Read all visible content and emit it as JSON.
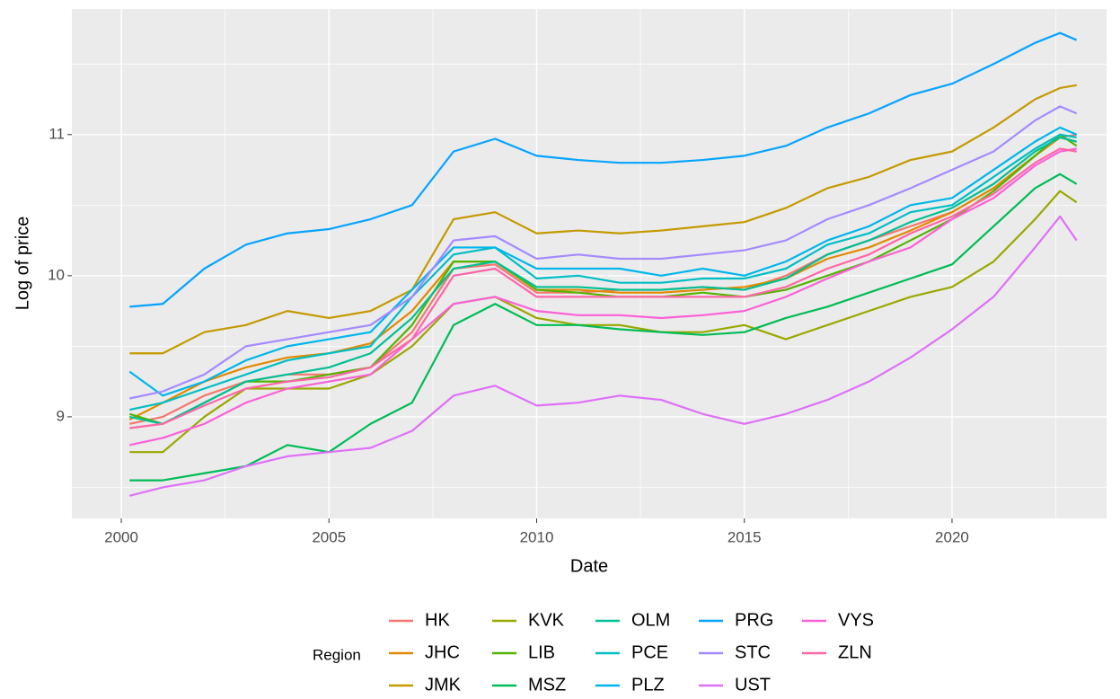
{
  "chart_data": {
    "type": "line",
    "x_label": "Date",
    "y_label": "Log of price",
    "legend_title": "Region",
    "xlim": [
      1998.81,
      2023.72
    ],
    "ylim": [
      8.28,
      11.89
    ],
    "xticks": [
      2000,
      2005,
      2010,
      2015,
      2020
    ],
    "yticks": [
      9,
      10,
      11
    ],
    "grid": true,
    "legend_position": "bottom",
    "x": [
      2000.2,
      2001,
      2002,
      2003,
      2004,
      2005,
      2006,
      2007,
      2008,
      2009,
      2010,
      2011,
      2012,
      2013,
      2014,
      2015,
      2016,
      2017,
      2018,
      2019,
      2020,
      2021,
      2022,
      2022.6,
      2023
    ],
    "series": [
      {
        "name": "HK",
        "color": "#F8766D",
        "values": [
          8.95,
          9.0,
          9.15,
          9.25,
          9.3,
          9.3,
          9.35,
          9.6,
          10.05,
          10.08,
          9.88,
          9.88,
          9.9,
          9.9,
          9.92,
          9.9,
          10.0,
          10.15,
          10.25,
          10.35,
          10.45,
          10.62,
          10.85,
          10.98,
          11.0
        ]
      },
      {
        "name": "JHC",
        "color": "#E38900",
        "values": [
          8.98,
          9.1,
          9.25,
          9.35,
          9.42,
          9.45,
          9.52,
          9.75,
          10.1,
          10.1,
          9.9,
          9.9,
          9.88,
          9.88,
          9.9,
          9.92,
          9.98,
          10.12,
          10.2,
          10.32,
          10.45,
          10.62,
          10.85,
          10.98,
          10.95
        ]
      },
      {
        "name": "JMK",
        "color": "#C49A00",
        "values": [
          9.45,
          9.45,
          9.6,
          9.65,
          9.75,
          9.7,
          9.75,
          9.9,
          10.4,
          10.45,
          10.3,
          10.32,
          10.3,
          10.32,
          10.35,
          10.38,
          10.48,
          10.62,
          10.7,
          10.82,
          10.88,
          11.05,
          11.25,
          11.33,
          11.35
        ]
      },
      {
        "name": "KVK",
        "color": "#99A800",
        "values": [
          8.75,
          8.75,
          9.0,
          9.2,
          9.2,
          9.2,
          9.3,
          9.5,
          9.8,
          9.85,
          9.7,
          9.65,
          9.65,
          9.6,
          9.6,
          9.65,
          9.55,
          9.65,
          9.75,
          9.85,
          9.92,
          10.1,
          10.4,
          10.6,
          10.52
        ]
      },
      {
        "name": "LIB",
        "color": "#53B400",
        "values": [
          9.02,
          8.95,
          9.1,
          9.25,
          9.25,
          9.3,
          9.35,
          9.65,
          10.1,
          10.1,
          9.9,
          9.88,
          9.85,
          9.85,
          9.88,
          9.85,
          9.9,
          10.0,
          10.1,
          10.25,
          10.4,
          10.6,
          10.85,
          11.0,
          10.92
        ]
      },
      {
        "name": "MSZ",
        "color": "#00BC56",
        "values": [
          8.55,
          8.55,
          8.6,
          8.65,
          8.8,
          8.75,
          8.95,
          9.1,
          9.65,
          9.8,
          9.65,
          9.65,
          9.62,
          9.6,
          9.58,
          9.6,
          9.7,
          9.78,
          9.88,
          9.98,
          10.08,
          10.35,
          10.62,
          10.72,
          10.65
        ]
      },
      {
        "name": "OLM",
        "color": "#00C094",
        "values": [
          9.0,
          8.95,
          9.1,
          9.25,
          9.3,
          9.35,
          9.45,
          9.7,
          10.05,
          10.1,
          9.92,
          9.92,
          9.9,
          9.9,
          9.92,
          9.9,
          9.98,
          10.15,
          10.25,
          10.38,
          10.48,
          10.65,
          10.88,
          10.98,
          10.95
        ]
      },
      {
        "name": "PCE",
        "color": "#00BFC4",
        "values": [
          9.05,
          9.1,
          9.2,
          9.3,
          9.4,
          9.45,
          9.5,
          9.85,
          10.15,
          10.2,
          9.98,
          10.0,
          9.95,
          9.95,
          9.98,
          9.98,
          10.05,
          10.22,
          10.3,
          10.45,
          10.5,
          10.7,
          10.9,
          11.0,
          10.98
        ]
      },
      {
        "name": "PLZ",
        "color": "#00B6EB",
        "values": [
          9.32,
          9.15,
          9.25,
          9.4,
          9.5,
          9.55,
          9.6,
          9.9,
          10.2,
          10.2,
          10.05,
          10.05,
          10.05,
          10.0,
          10.05,
          10.0,
          10.1,
          10.25,
          10.35,
          10.5,
          10.55,
          10.75,
          10.95,
          11.05,
          11.0
        ]
      },
      {
        "name": "PRG",
        "color": "#06A4FF",
        "values": [
          9.78,
          9.8,
          10.05,
          10.22,
          10.3,
          10.33,
          10.4,
          10.5,
          10.88,
          10.97,
          10.85,
          10.82,
          10.8,
          10.8,
          10.82,
          10.85,
          10.92,
          11.05,
          11.15,
          11.28,
          11.36,
          11.5,
          11.65,
          11.72,
          11.67
        ]
      },
      {
        "name": "STC",
        "color": "#A58AFF",
        "values": [
          9.13,
          9.18,
          9.3,
          9.5,
          9.55,
          9.6,
          9.65,
          9.85,
          10.25,
          10.28,
          10.12,
          10.15,
          10.12,
          10.12,
          10.15,
          10.18,
          10.25,
          10.4,
          10.5,
          10.62,
          10.75,
          10.88,
          11.1,
          11.2,
          11.15
        ]
      },
      {
        "name": "UST",
        "color": "#DF70F8",
        "values": [
          8.44,
          8.5,
          8.55,
          8.65,
          8.72,
          8.75,
          8.78,
          8.9,
          9.15,
          9.22,
          9.08,
          9.1,
          9.15,
          9.12,
          9.02,
          8.95,
          9.02,
          9.12,
          9.25,
          9.42,
          9.62,
          9.85,
          10.2,
          10.42,
          10.25
        ]
      },
      {
        "name": "VYS",
        "color": "#FB61D7",
        "values": [
          8.8,
          8.85,
          8.95,
          9.1,
          9.2,
          9.25,
          9.3,
          9.55,
          9.8,
          9.85,
          9.75,
          9.72,
          9.72,
          9.7,
          9.72,
          9.75,
          9.85,
          9.98,
          10.1,
          10.2,
          10.4,
          10.55,
          10.78,
          10.88,
          10.9
        ]
      },
      {
        "name": "ZLN",
        "color": "#FF66A8",
        "values": [
          8.92,
          8.95,
          9.08,
          9.2,
          9.25,
          9.28,
          9.35,
          9.55,
          10.0,
          10.05,
          9.85,
          9.85,
          9.85,
          9.85,
          9.85,
          9.85,
          9.92,
          10.05,
          10.15,
          10.3,
          10.42,
          10.58,
          10.8,
          10.9,
          10.88
        ]
      }
    ]
  }
}
